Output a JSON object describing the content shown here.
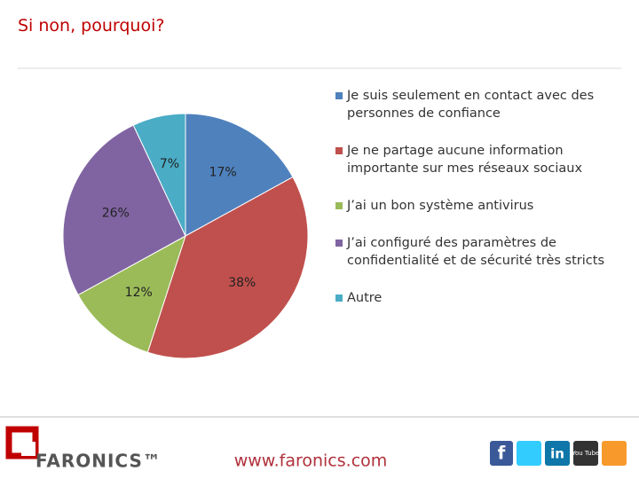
{
  "chart_data": {
    "type": "pie",
    "title": "Si non, pourquoi?",
    "categories": [
      "Je suis seulement en contact avec des personnes de confiance",
      "Je ne partage aucune information importante sur mes réseaux sociaux",
      "J’ai un bon système antivirus",
      "J’ai configuré des paramètres de confidentialité et de sécurité très stricts",
      "Autre"
    ],
    "values": [
      17,
      38,
      12,
      26,
      7
    ],
    "value_labels": [
      "17%",
      "38%",
      "12%",
      "26%",
      "7%"
    ],
    "colors": [
      "#4f81bd",
      "#c0504d",
      "#9bbb59",
      "#8064a2",
      "#4bacc6"
    ],
    "legend": "right"
  },
  "footer": {
    "logo": "FARONICS™",
    "url": "www.faronics.com",
    "social": [
      "f",
      "in",
      "You Tube"
    ]
  }
}
